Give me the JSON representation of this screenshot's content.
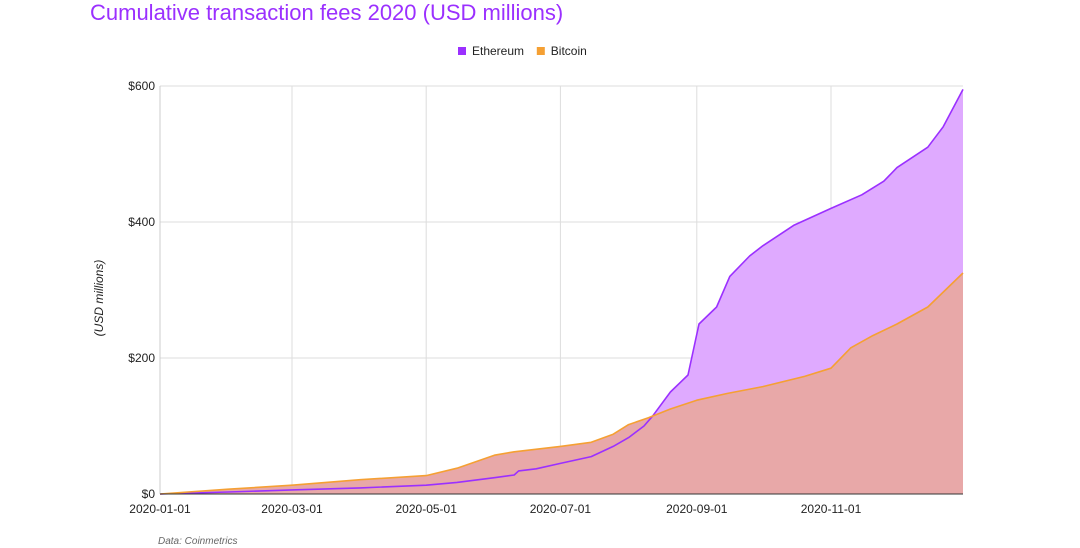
{
  "chart_data": {
    "type": "area",
    "title": "Cumulative transaction fees 2020 (USD millions)",
    "ylabel": "(USD millions)",
    "xlabel": "",
    "source": "Data: Coinmetrics",
    "legend_position": "top-center",
    "grid": true,
    "xlim": [
      "2020-01-01",
      "2020-12-31"
    ],
    "ylim": [
      0,
      600
    ],
    "x_ticks": [
      "2020-01-01",
      "2020-03-01",
      "2020-05-01",
      "2020-07-01",
      "2020-09-01",
      "2020-11-01"
    ],
    "y_ticks": [
      {
        "value": 0,
        "label": "$0"
      },
      {
        "value": 200,
        "label": "$200"
      },
      {
        "value": 400,
        "label": "$400"
      },
      {
        "value": 600,
        "label": "$600"
      }
    ],
    "series": [
      {
        "name": "Ethereum",
        "color": "#9b30ff",
        "fill": "#dfaaff",
        "points": [
          [
            "2020-01-01",
            0
          ],
          [
            "2020-02-01",
            3
          ],
          [
            "2020-03-01",
            6
          ],
          [
            "2020-04-01",
            9
          ],
          [
            "2020-05-01",
            13
          ],
          [
            "2020-05-15",
            17
          ],
          [
            "2020-06-01",
            24
          ],
          [
            "2020-06-10",
            28
          ],
          [
            "2020-06-12",
            34
          ],
          [
            "2020-06-20",
            37
          ],
          [
            "2020-07-01",
            45
          ],
          [
            "2020-07-15",
            55
          ],
          [
            "2020-07-25",
            70
          ],
          [
            "2020-08-01",
            83
          ],
          [
            "2020-08-08",
            100
          ],
          [
            "2020-08-12",
            115
          ],
          [
            "2020-08-20",
            150
          ],
          [
            "2020-08-28",
            175
          ],
          [
            "2020-09-02",
            250
          ],
          [
            "2020-09-10",
            275
          ],
          [
            "2020-09-16",
            320
          ],
          [
            "2020-09-25",
            350
          ],
          [
            "2020-10-01",
            365
          ],
          [
            "2020-10-15",
            395
          ],
          [
            "2020-11-01",
            420
          ],
          [
            "2020-11-15",
            440
          ],
          [
            "2020-11-25",
            460
          ],
          [
            "2020-12-01",
            480
          ],
          [
            "2020-12-15",
            510
          ],
          [
            "2020-12-22",
            540
          ],
          [
            "2020-12-31",
            595
          ]
        ]
      },
      {
        "name": "Bitcoin",
        "color": "#f5a033",
        "fill": "#e8a8a8",
        "points": [
          [
            "2020-01-01",
            0
          ],
          [
            "2020-02-01",
            7
          ],
          [
            "2020-03-01",
            13
          ],
          [
            "2020-04-01",
            21
          ],
          [
            "2020-05-01",
            27
          ],
          [
            "2020-05-15",
            38
          ],
          [
            "2020-06-01",
            57
          ],
          [
            "2020-06-10",
            62
          ],
          [
            "2020-07-01",
            70
          ],
          [
            "2020-07-15",
            76
          ],
          [
            "2020-07-25",
            88
          ],
          [
            "2020-08-01",
            102
          ],
          [
            "2020-08-10",
            112
          ],
          [
            "2020-08-20",
            125
          ],
          [
            "2020-09-01",
            138
          ],
          [
            "2020-09-15",
            148
          ],
          [
            "2020-10-01",
            158
          ],
          [
            "2020-10-20",
            173
          ],
          [
            "2020-11-01",
            185
          ],
          [
            "2020-11-10",
            215
          ],
          [
            "2020-11-20",
            233
          ],
          [
            "2020-12-01",
            250
          ],
          [
            "2020-12-15",
            275
          ],
          [
            "2020-12-31",
            325
          ]
        ]
      }
    ]
  }
}
